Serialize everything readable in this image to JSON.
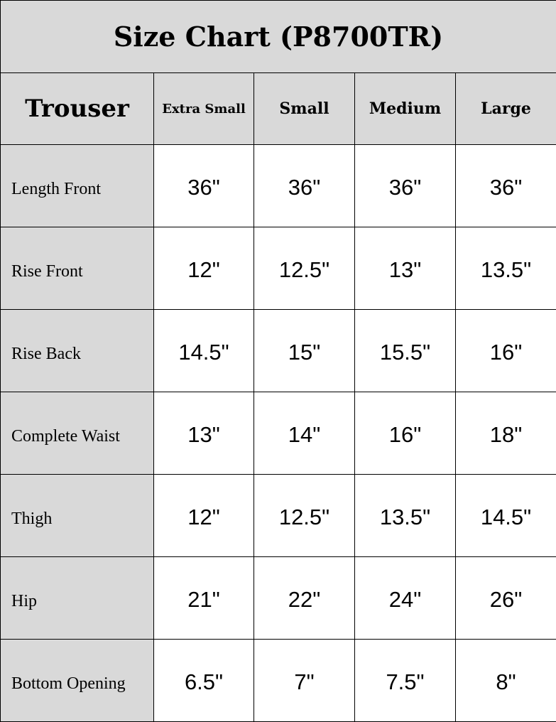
{
  "title": "Size Chart (P8700TR)",
  "header": {
    "first": "Trouser",
    "sizes": [
      "Extra Small",
      "Small",
      "Medium",
      "Large"
    ]
  },
  "rows": [
    {
      "label": "Length Front",
      "values": [
        "36\"",
        "36\"",
        "36\"",
        "36\""
      ]
    },
    {
      "label": "Rise Front",
      "values": [
        "12\"",
        "12.5\"",
        "13\"",
        "13.5\""
      ]
    },
    {
      "label": "Rise Back",
      "values": [
        "14.5\"",
        "15\"",
        "15.5\"",
        "16\""
      ]
    },
    {
      "label": "Complete Waist",
      "values": [
        "13\"",
        "14\"",
        "16\"",
        "18\""
      ]
    },
    {
      "label": "Thigh",
      "values": [
        "12\"",
        "12.5\"",
        "13.5\"",
        "14.5\""
      ]
    },
    {
      "label": "Hip",
      "values": [
        "21\"",
        "22\"",
        "24\"",
        "26\""
      ]
    },
    {
      "label": "Bottom Opening",
      "values": [
        "6.5\"",
        "7\"",
        "7.5\"",
        "8\""
      ]
    }
  ]
}
